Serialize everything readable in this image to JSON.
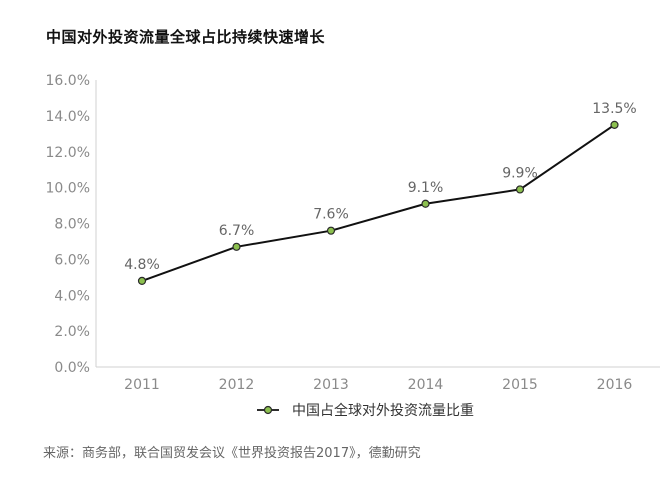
{
  "chart_data": {
    "type": "line",
    "title": "中国对外投资流量全球占比持续快速增长",
    "x": [
      "2011",
      "2012",
      "2013",
      "2014",
      "2015",
      "2016"
    ],
    "series": [
      {
        "name": "中国占全球对外投资流量比重",
        "values": [
          4.8,
          6.7,
          7.6,
          9.1,
          9.9,
          13.5
        ],
        "labels": [
          "4.8%",
          "6.7%",
          "7.6%",
          "9.1%",
          "9.9%",
          "13.5%"
        ]
      }
    ],
    "y_ticks": [
      "0.0%",
      "2.0%",
      "4.0%",
      "6.0%",
      "8.0%",
      "10.0%",
      "12.0%",
      "14.0%",
      "16.0%"
    ],
    "ylim": [
      0,
      16
    ],
    "xlabel": "",
    "ylabel": "",
    "grid": false,
    "legend_position": "bottom",
    "colors": {
      "line": "#111111",
      "marker_fill": "#8cc04f",
      "marker_edge": "#2a2a2a",
      "axis": "#d0d0d0"
    }
  },
  "source": "来源：商务部，联合国贸发会议《世界投资报告2017》，德勤研究"
}
